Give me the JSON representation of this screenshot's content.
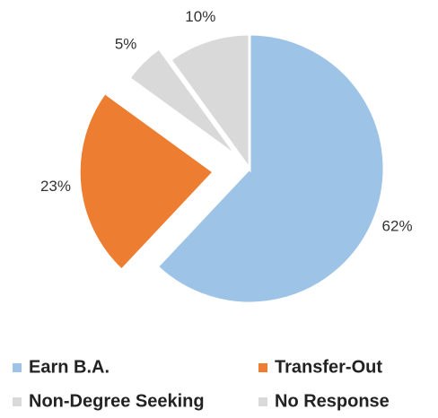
{
  "chart_data": {
    "type": "pie",
    "categories": [
      "Earn B.A.",
      "Transfer-Out",
      "Non-Degree Seeking",
      "No Response"
    ],
    "values": [
      62,
      23,
      5,
      10
    ],
    "value_labels": [
      "62%",
      "23%",
      "5%",
      "10%"
    ],
    "colors": [
      "#9dc3e6",
      "#ed7d31",
      "#d9d9d9",
      "#d9d9d9"
    ],
    "legend": "bottom"
  }
}
